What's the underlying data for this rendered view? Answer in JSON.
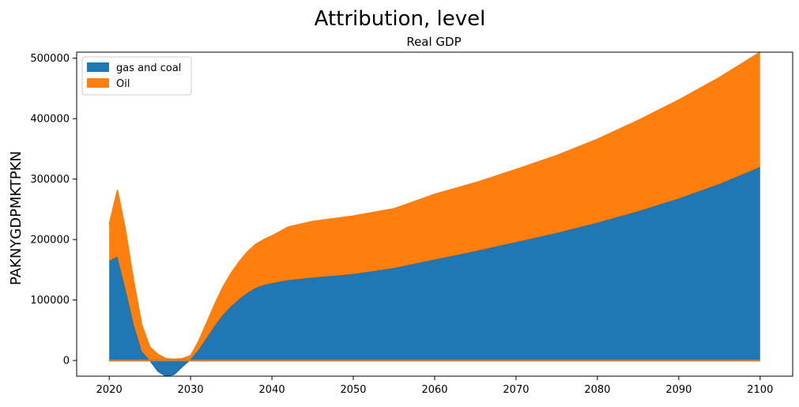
{
  "chart_data": {
    "type": "area",
    "stacked": true,
    "suptitle": "Attribution, level",
    "title": "Real GDP",
    "ylabel": "PAKNYGDPMKTPKN",
    "xlabel": "",
    "xlim": [
      2016,
      2104
    ],
    "ylim": [
      -26000,
      510000
    ],
    "xticks": [
      2020,
      2030,
      2040,
      2050,
      2060,
      2070,
      2080,
      2090,
      2100
    ],
    "yticks": [
      0,
      100000,
      200000,
      300000,
      400000,
      500000
    ],
    "legend_position": "upper-left",
    "grid": false,
    "x": [
      2020,
      2021,
      2022,
      2023,
      2024,
      2025,
      2026,
      2027,
      2028,
      2029,
      2030,
      2031,
      2032,
      2033,
      2034,
      2035,
      2036,
      2037,
      2038,
      2039,
      2040,
      2042,
      2045,
      2050,
      2055,
      2060,
      2065,
      2070,
      2075,
      2080,
      2085,
      2090,
      2095,
      2100
    ],
    "series": [
      {
        "name": "gas and coal",
        "color": "#1f77b4",
        "values": [
          165000,
          172000,
          118000,
          60000,
          15000,
          0,
          -18000,
          -26000,
          -23000,
          -10000,
          2000,
          18000,
          38000,
          58000,
          76000,
          90000,
          102000,
          112000,
          120000,
          125000,
          128000,
          133000,
          137000,
          143000,
          153000,
          167000,
          181000,
          196000,
          211000,
          228000,
          247000,
          268000,
          292000,
          320000
        ]
      },
      {
        "name": "Oil",
        "color": "#ff7f0e",
        "values": [
          60000,
          110000,
          98000,
          72000,
          44000,
          22000,
          10000,
          3000,
          2000,
          3000,
          6000,
          14000,
          25000,
          36000,
          46000,
          55000,
          62000,
          68000,
          72000,
          75000,
          78000,
          88000,
          93000,
          96000,
          98000,
          108000,
          113000,
          120000,
          128000,
          138000,
          150000,
          163000,
          176000,
          190000
        ]
      }
    ]
  }
}
